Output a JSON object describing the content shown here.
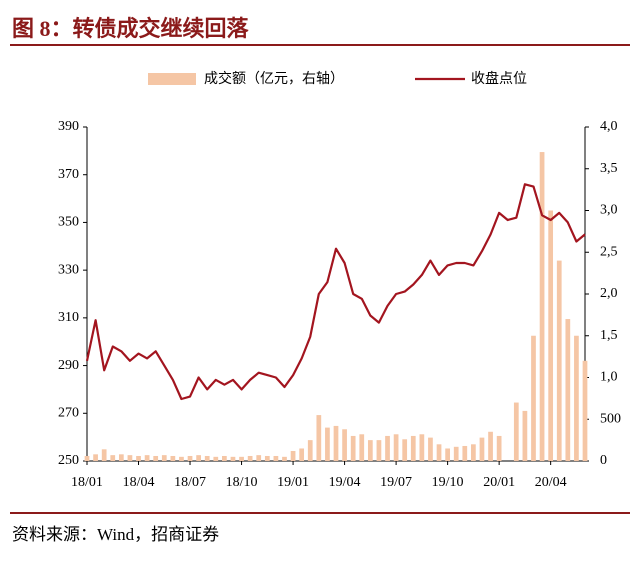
{
  "chart_data": {
    "type": "bar-line",
    "title": "图 8：转债成交继续回落",
    "source": "资料来源：Wind，招商证券",
    "categories": [
      "18/01",
      null,
      null,
      null,
      null,
      null,
      "18/04",
      null,
      null,
      null,
      null,
      null,
      "18/07",
      null,
      null,
      null,
      null,
      null,
      "18/10",
      null,
      null,
      null,
      null,
      null,
      "19/01",
      null,
      null,
      null,
      null,
      null,
      "19/04",
      null,
      null,
      null,
      null,
      null,
      "19/07",
      null,
      null,
      null,
      null,
      null,
      "19/10",
      null,
      null,
      null,
      null,
      null,
      "20/01",
      null,
      null,
      null,
      null,
      null,
      "20/04",
      null,
      null,
      null,
      null
    ],
    "series": [
      {
        "name": "成交额（亿元，右轴）",
        "type": "bar",
        "axis": "y2",
        "color": "#f5c6a5",
        "values": [
          60,
          80,
          140,
          70,
          80,
          70,
          60,
          70,
          60,
          70,
          60,
          50,
          60,
          70,
          60,
          50,
          60,
          50,
          50,
          60,
          70,
          60,
          60,
          50,
          120,
          150,
          250,
          550,
          400,
          420,
          380,
          300,
          320,
          250,
          250,
          300,
          320,
          260,
          300,
          320,
          280,
          200,
          150,
          170,
          180,
          200,
          280,
          350,
          300,
          0,
          700,
          600,
          1500,
          3700,
          3000,
          2400,
          1700,
          1500,
          1200
        ]
      },
      {
        "name": "收盘点位",
        "type": "line",
        "color": "#a3151f",
        "values": [
          292,
          309,
          288,
          298,
          296,
          292,
          295,
          293,
          296,
          290,
          284,
          276,
          277,
          285,
          280,
          284,
          282,
          284,
          280,
          284,
          287,
          286,
          285,
          281,
          286,
          293,
          302,
          320,
          325,
          339,
          333,
          320,
          318,
          311,
          308,
          315,
          320,
          321,
          324,
          328,
          334,
          328,
          332,
          333,
          333,
          332,
          338,
          345,
          354,
          351,
          352,
          366,
          365,
          353,
          351,
          354,
          350,
          342,
          345
        ]
      }
    ],
    "ylim": [
      250,
      390
    ],
    "yticks": [
      250,
      270,
      290,
      310,
      330,
      350,
      370,
      390
    ],
    "y2lim": [
      0,
      4000
    ],
    "y2ticks": [
      0,
      500,
      {
        "value": 1000,
        "label": "1,0"
      },
      {
        "value": 1500,
        "label": "1,5"
      },
      {
        "value": 2000,
        "label": "2,0"
      },
      {
        "value": 2500,
        "label": "2,5"
      },
      {
        "value": 3000,
        "label": "3,0"
      },
      {
        "value": 3500,
        "label": "3,5"
      },
      {
        "value": 4000,
        "label": "4,0"
      }
    ]
  }
}
